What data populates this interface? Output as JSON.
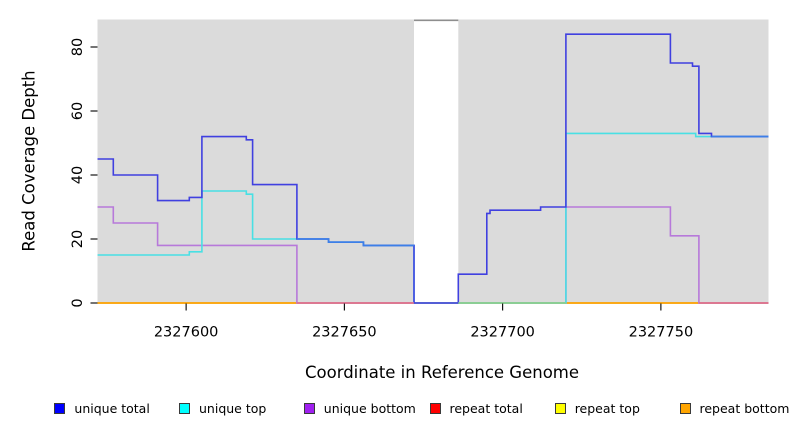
{
  "figure": {
    "background": "#ffffff",
    "panel_background": "#dbdbdb",
    "gap_border_color": "#8e8e8e"
  },
  "axes": {
    "x": {
      "title": "Coordinate in Reference Genome",
      "ticks": [
        2327600,
        2327650,
        2327700,
        2327750
      ],
      "tick_labels": [
        "2327600",
        "2327650",
        "2327700",
        "2327750"
      ]
    },
    "y": {
      "title": "Read Coverage Depth",
      "ticks": [
        0,
        20,
        40,
        60,
        80
      ],
      "tick_labels": [
        "0",
        "20",
        "40",
        "60",
        "80"
      ]
    }
  },
  "chart_data": {
    "type": "line",
    "subtype": "step-coverage",
    "xlabel": "Coordinate in Reference Genome",
    "ylabel": "Read Coverage Depth",
    "xlim": [
      2327572,
      2327784
    ],
    "ylim": [
      0,
      88.6
    ],
    "gap_region": {
      "x1": 2327672,
      "x2": 2327686,
      "note": "white masked region with gray top border"
    },
    "series": [
      {
        "name": "repeat total",
        "color": "#FF0000",
        "line_color": "#E03030",
        "points": [
          [
            2327572,
            0
          ],
          [
            2327784,
            0
          ]
        ]
      },
      {
        "name": "repeat top",
        "color": "#FFFF00",
        "line_color": "#F0E040",
        "points": [
          [
            2327572,
            0
          ],
          [
            2327784,
            0
          ]
        ]
      },
      {
        "name": "repeat bottom",
        "color": "#FFA500",
        "line_color": "#FFA500",
        "points": [
          [
            2327572,
            0
          ],
          [
            2327784,
            0
          ]
        ]
      },
      {
        "name": "unique bottom",
        "color": "#A020F0",
        "line_color": "#B779DA",
        "points": [
          [
            2327572,
            30
          ],
          [
            2327577,
            25
          ],
          [
            2327591,
            18
          ],
          [
            2327635,
            0
          ],
          [
            2327720,
            30
          ],
          [
            2327753,
            21
          ],
          [
            2327762,
            0
          ],
          [
            2327784,
            0
          ]
        ]
      },
      {
        "name": "unique top",
        "color": "#00FFFF",
        "line_color": "#48E0E4",
        "points": [
          [
            2327572,
            15
          ],
          [
            2327601,
            16
          ],
          [
            2327605,
            35
          ],
          [
            2327619,
            34
          ],
          [
            2327621,
            20
          ],
          [
            2327645,
            19
          ],
          [
            2327656,
            18
          ],
          [
            2327672,
            0
          ],
          [
            2327720,
            53
          ],
          [
            2327761,
            52
          ],
          [
            2327784,
            52
          ]
        ]
      },
      {
        "name": "unique total",
        "color": "#0000FF",
        "line_color": "#4040E0",
        "points": [
          [
            2327572,
            45
          ],
          [
            2327577,
            40
          ],
          [
            2327591,
            32
          ],
          [
            2327601,
            33
          ],
          [
            2327605,
            52
          ],
          [
            2327619,
            51
          ],
          [
            2327621,
            37
          ],
          [
            2327635,
            20
          ],
          [
            2327645,
            19
          ],
          [
            2327656,
            18
          ],
          [
            2327672,
            0
          ],
          [
            2327686,
            9
          ],
          [
            2327695,
            28
          ],
          [
            2327696,
            29
          ],
          [
            2327712,
            30
          ],
          [
            2327720,
            84
          ],
          [
            2327753,
            75
          ],
          [
            2327760,
            74
          ],
          [
            2327762,
            53
          ],
          [
            2327766,
            52
          ],
          [
            2327784,
            52
          ]
        ]
      }
    ],
    "overlap_segments": [
      {
        "name": "unique-bottom-over-repeat-bottom",
        "color": "#DE6E96",
        "points": [
          [
            2327635,
            0
          ],
          [
            2327672,
            0
          ]
        ]
      },
      {
        "name": "unique-bottom-over-repeat-bottom",
        "color": "#DE6E96",
        "points": [
          [
            2327762,
            0
          ],
          [
            2327784,
            0
          ]
        ]
      },
      {
        "name": "unique-top-over-repeat-bottom",
        "color": "#8AD48A",
        "points": [
          [
            2327686,
            0
          ],
          [
            2327720,
            0
          ]
        ]
      },
      {
        "name": "unique-total-over-unique-top",
        "color": "#3C7FE8",
        "points": [
          [
            2327635,
            20
          ],
          [
            2327645,
            19
          ],
          [
            2327656,
            18
          ],
          [
            2327672,
            18
          ]
        ]
      },
      {
        "name": "unique-total-over-unique-top",
        "color": "#3C7FE8",
        "points": [
          [
            2327766,
            52
          ],
          [
            2327784,
            52
          ]
        ]
      }
    ]
  },
  "legend": {
    "items": [
      {
        "label": "unique total",
        "color": "#0000FF"
      },
      {
        "label": "unique top",
        "color": "#00FFFF"
      },
      {
        "label": "unique bottom",
        "color": "#A020F0"
      },
      {
        "label": "repeat total",
        "color": "#FF0000"
      },
      {
        "label": "repeat top",
        "color": "#FFFF00"
      },
      {
        "label": "repeat bottom",
        "color": "#FFA500"
      }
    ]
  }
}
